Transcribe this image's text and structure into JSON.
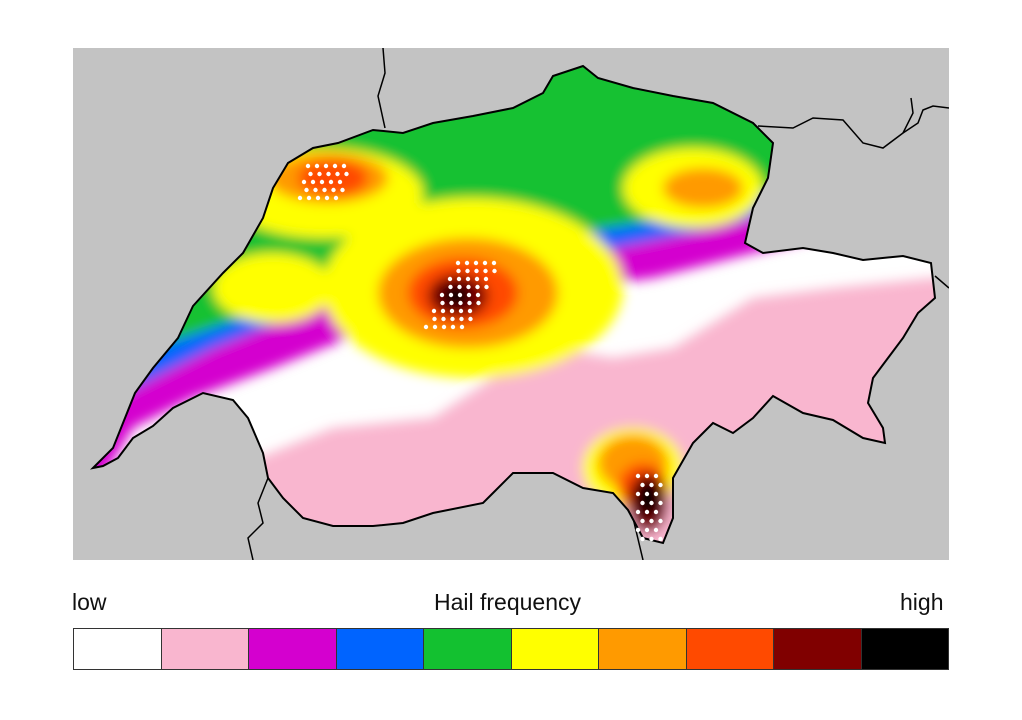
{
  "legend": {
    "low_label": "low",
    "title": "Hail frequency",
    "high_label": "high",
    "classes": [
      {
        "color": "#ffffff"
      },
      {
        "color": "#f9b6cf"
      },
      {
        "color": "#d400cf"
      },
      {
        "color": "#0064ff"
      },
      {
        "color": "#13c130"
      },
      {
        "color": "#ffff00"
      },
      {
        "color": "#ff9a00"
      },
      {
        "color": "#ff4a00"
      },
      {
        "color": "#800000"
      },
      {
        "color": "#000000"
      }
    ]
  },
  "map": {
    "background_color": "#c3c3c3",
    "border_color": "#000000",
    "hotspot_marker_color": "#ffffff"
  }
}
